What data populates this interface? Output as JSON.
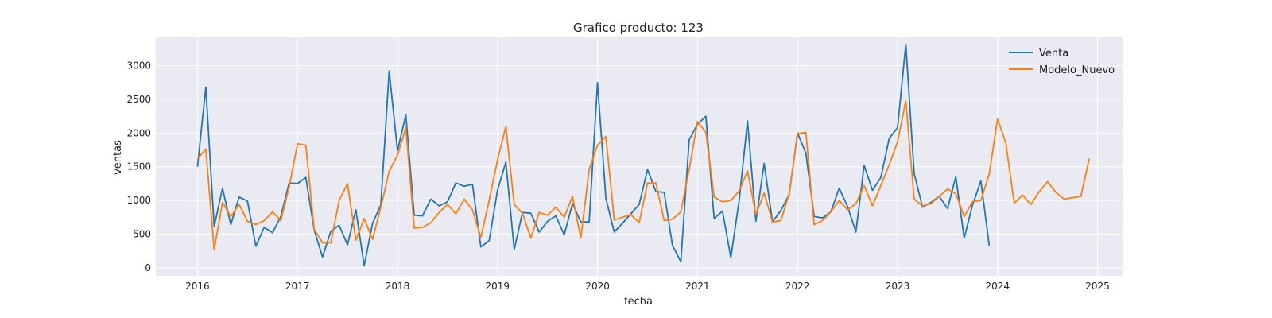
{
  "chart_data": {
    "type": "line",
    "title": "Grafico producto: 123",
    "xlabel": "fecha",
    "ylabel": "ventas",
    "x_start": "2016-01",
    "x_step": "month",
    "xlim": [
      "2015-08",
      "2025-04"
    ],
    "ylim": [
      -120,
      3420
    ],
    "x_ticks": [
      "2016",
      "2017",
      "2018",
      "2019",
      "2020",
      "2021",
      "2022",
      "2023",
      "2024",
      "2025"
    ],
    "y_ticks": [
      0,
      500,
      1000,
      1500,
      2000,
      2500,
      3000
    ],
    "grid": true,
    "legend_position": "top-right",
    "background": "#eaeaf2",
    "series": [
      {
        "name": "Venta",
        "color": "#1f77b4",
        "values": [
          1500,
          2680,
          610,
          1180,
          640,
          1050,
          990,
          320,
          600,
          520,
          760,
          1260,
          1250,
          1340,
          560,
          160,
          540,
          630,
          340,
          860,
          30,
          660,
          930,
          2920,
          1740,
          2270,
          780,
          770,
          1020,
          920,
          980,
          1260,
          1210,
          1240,
          310,
          400,
          1150,
          1570,
          270,
          820,
          810,
          530,
          690,
          770,
          490,
          950,
          680,
          680,
          2750,
          1030,
          530,
          660,
          800,
          940,
          1460,
          1130,
          1120,
          330,
          90,
          1900,
          2130,
          2250,
          730,
          840,
          150,
          1000,
          2180,
          690,
          1550,
          680,
          850,
          1090,
          2000,
          1700,
          760,
          740,
          830,
          1180,
          910,
          530,
          1520,
          1150,
          1340,
          1920,
          2080,
          3320,
          1400,
          900,
          970,
          1060,
          880,
          1350,
          440,
          930,
          1290,
          330
        ]
      },
      {
        "name": "Modelo_Nuevo",
        "color": "#ff7f0e",
        "values": [
          1620,
          1760,
          270,
          970,
          760,
          940,
          690,
          640,
          700,
          830,
          700,
          1200,
          1840,
          1820,
          570,
          370,
          370,
          1000,
          1250,
          410,
          730,
          420,
          900,
          1430,
          1670,
          2080,
          590,
          600,
          670,
          820,
          940,
          800,
          1020,
          860,
          450,
          1000,
          1600,
          2100,
          940,
          810,
          440,
          820,
          780,
          900,
          750,
          1060,
          440,
          1460,
          1820,
          1950,
          710,
          750,
          790,
          670,
          1260,
          1260,
          700,
          720,
          830,
          1460,
          2170,
          2010,
          1050,
          980,
          1000,
          1140,
          1440,
          790,
          1110,
          680,
          700,
          1100,
          1990,
          2010,
          640,
          700,
          830,
          1000,
          860,
          950,
          1220,
          920,
          1220,
          1530,
          1870,
          2480,
          1020,
          920,
          950,
          1060,
          1170,
          1100,
          760,
          980,
          1000,
          1390,
          2210,
          1850,
          960,
          1080,
          940,
          1130,
          1280,
          1120,
          1020,
          1040,
          1060,
          1620
        ]
      }
    ]
  }
}
